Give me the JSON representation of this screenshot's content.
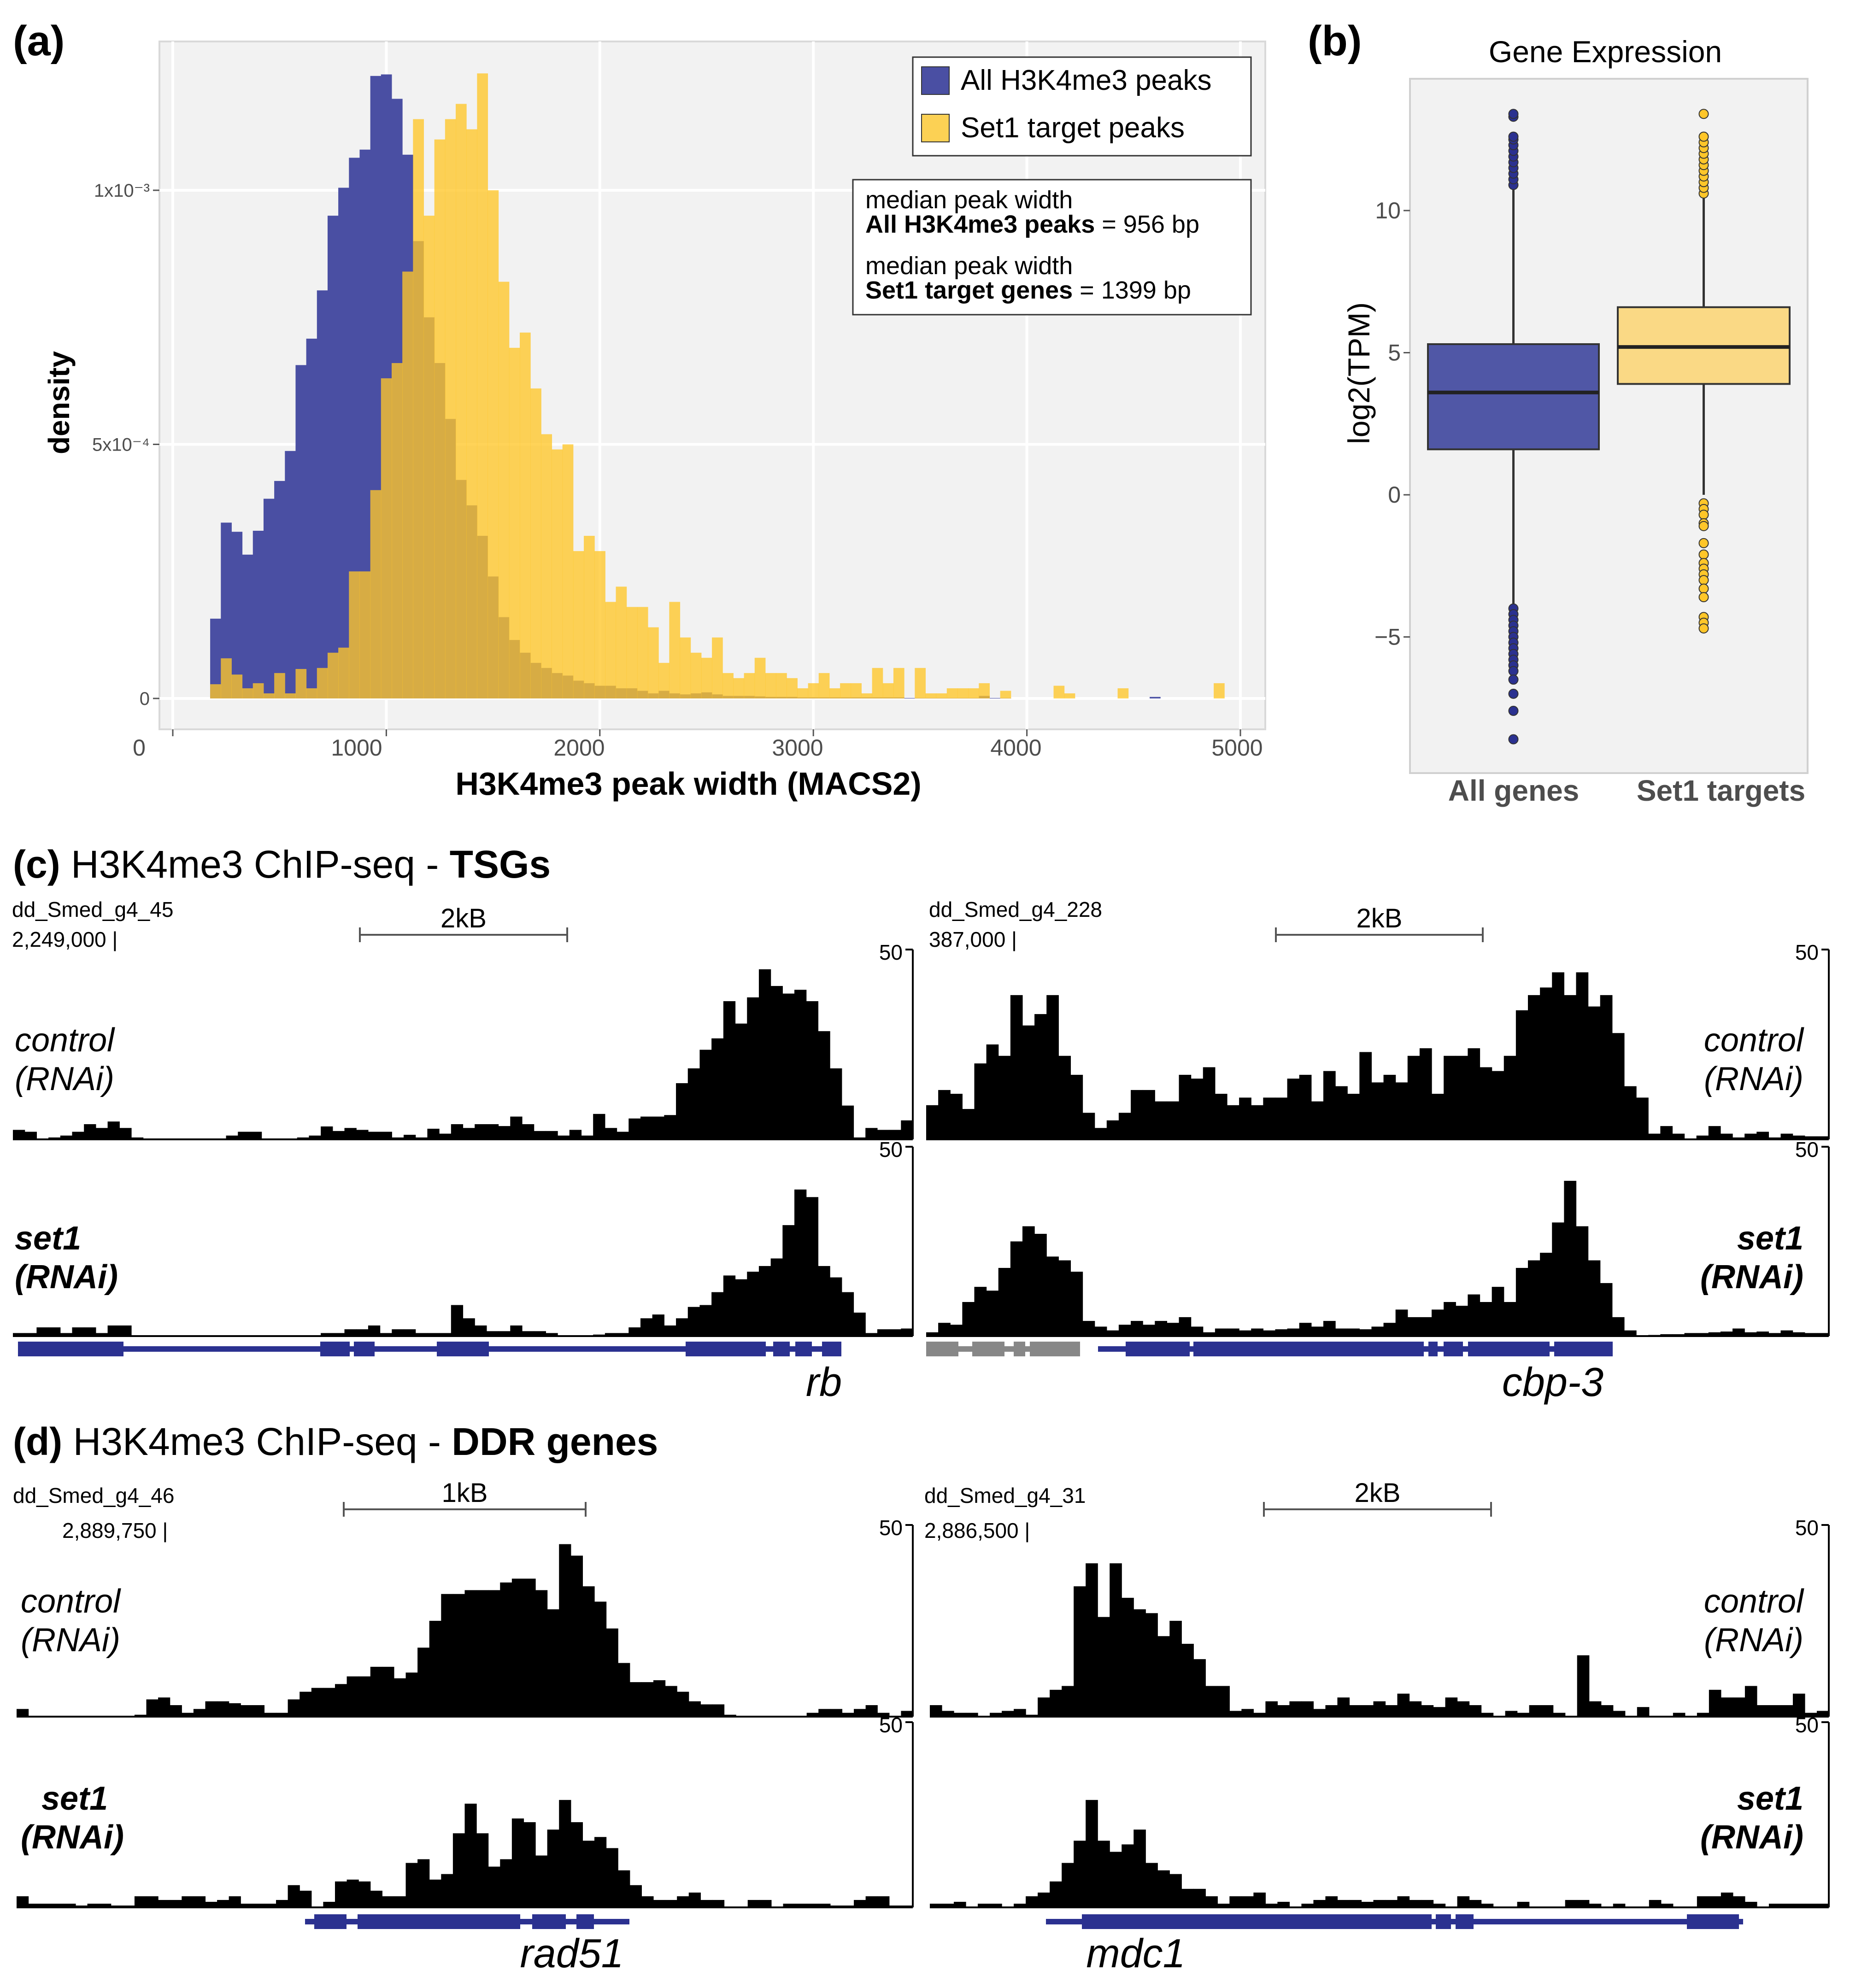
{
  "panel_a": {
    "label": "(a)",
    "chart_data": {
      "type": "histogram",
      "xlabel": "H3K4me3 peak width (MACS2)",
      "ylabel": "density",
      "xlim": [
        0,
        5000
      ],
      "ylim_x1e-4": [
        0,
        12.5
      ],
      "x_ticks": [
        "0",
        "1000",
        "2000",
        "3000",
        "4000",
        "5000"
      ],
      "y_ticks": [
        {
          "value_x1e-4": 0,
          "label": "0"
        },
        {
          "value_x1e-4": 5,
          "label": "5x10⁻⁴"
        },
        {
          "value_x1e-4": 10,
          "label": "1x10⁻³"
        }
      ],
      "grid": true,
      "legend_placement": "top-right",
      "bin_start_bp": 175,
      "bin_width_bp": 50,
      "value_unit": "density x 1e-4",
      "series": [
        {
          "name": "All H3K4me3 peaks",
          "color": "#4a4fa3",
          "values": [
            1.57,
            3.46,
            3.28,
            2.83,
            3.3,
            3.93,
            4.28,
            4.87,
            6.56,
            7.08,
            8.03,
            9.5,
            10.05,
            10.64,
            10.8,
            12.25,
            12.28,
            11.8,
            10.7,
            9.0,
            7.5,
            6.6,
            5.5,
            4.3,
            3.8,
            3.2,
            2.4,
            1.6,
            1.15,
            0.9,
            0.7,
            0.6,
            0.5,
            0.45,
            0.35,
            0.3,
            0.25,
            0.25,
            0.2,
            0.2,
            0.15,
            0.1,
            0.15,
            0.1,
            0.08,
            0.1,
            0.12,
            0.08,
            0.05,
            0.05,
            0.05,
            0.04,
            0.03,
            0.03,
            0.03,
            0.02,
            0.02,
            0.02,
            0.02,
            0.02,
            0.02,
            0.02,
            0.02,
            0.02,
            0.02,
            0.01,
            0.01,
            0.01,
            0.01,
            0.01,
            0.01,
            0.01,
            0.05,
            0.01,
            0.01,
            0,
            0,
            0,
            0,
            0,
            0,
            0,
            0,
            0,
            0,
            0,
            0,
            0,
            0.03,
            0,
            0,
            0,
            0,
            0,
            0
          ]
        },
        {
          "name": "Set1 target peaks",
          "color": "#ffc629",
          "values": [
            0.28,
            0.79,
            0.47,
            0.2,
            0.3,
            0.1,
            0.5,
            0.1,
            0.58,
            0.2,
            0.6,
            0.9,
            1.0,
            2.5,
            2.5,
            4.1,
            6.3,
            6.6,
            8.4,
            11.4,
            9.5,
            11.0,
            11.4,
            11.7,
            11.2,
            12.3,
            10.0,
            8.2,
            6.9,
            7.2,
            6.1,
            5.2,
            4.9,
            5.0,
            2.9,
            3.2,
            2.9,
            1.9,
            2.2,
            1.8,
            1.8,
            1.4,
            0.7,
            1.9,
            1.2,
            0.9,
            0.8,
            1.2,
            0.5,
            0.4,
            0.5,
            0.8,
            0.5,
            0.5,
            0.4,
            0.2,
            0.3,
            0.5,
            0.2,
            0.3,
            0.3,
            0.1,
            0.6,
            0.3,
            0.6,
            0,
            0.6,
            0.1,
            0.1,
            0.2,
            0.2,
            0.2,
            0.3,
            0,
            0.15,
            0,
            0,
            0,
            0,
            0.25,
            0.1,
            0,
            0,
            0,
            0,
            0.2,
            0,
            0,
            0,
            0,
            0,
            0,
            0,
            0,
            0.3
          ]
        }
      ],
      "annotations": [
        {
          "line1": "median peak width",
          "bold": "All H3K4me3 peaks",
          "rest": " = 956 bp"
        },
        {
          "line1": "median peak width",
          "bold": "Set1 target genes",
          "rest": " = 1399 bp"
        }
      ]
    }
  },
  "panel_b": {
    "label": "(b)",
    "chart_data": {
      "type": "box",
      "title": "Gene Expression",
      "ylabel": "log2(TPM)",
      "ylim": [
        -9.8,
        14.6
      ],
      "y_ticks": [
        {
          "value": 10,
          "label": "10"
        },
        {
          "value": 5,
          "label": "5"
        },
        {
          "value": 0,
          "label": "0"
        },
        {
          "value": -5,
          "label": "−5"
        }
      ],
      "categories": [
        "All genes",
        "Set1 targets"
      ],
      "series": [
        {
          "name": "All genes",
          "color": "#5057a6",
          "q1": 1.6,
          "median": 3.6,
          "q3": 5.3,
          "whisker_low": -4.0,
          "whisker_high": 10.9,
          "outliers": [
            10.9,
            11.1,
            11.3,
            11.5,
            11.7,
            11.9,
            12.1,
            12.3,
            12.5,
            12.6,
            13.3,
            13.4,
            -4.0,
            -4.2,
            -4.4,
            -4.6,
            -4.8,
            -5.0,
            -5.2,
            -5.4,
            -5.6,
            -5.8,
            -6.0,
            -6.2,
            -6.5,
            -7.0,
            -7.6,
            -8.6
          ]
        },
        {
          "name": "Set1 targets",
          "color": "#fad985",
          "q1": 3.9,
          "median": 5.2,
          "q3": 6.6,
          "whisker_low": 0.0,
          "whisker_high": 10.6,
          "outliers": [
            10.6,
            10.8,
            11.0,
            11.2,
            11.4,
            11.6,
            11.8,
            12.0,
            12.2,
            12.4,
            12.6,
            13.4,
            -0.3,
            -0.5,
            -0.7,
            -1.0,
            -1.1,
            -1.7,
            -2.1,
            -2.4,
            -2.6,
            -2.8,
            -3.0,
            -3.3,
            -3.6,
            -4.3,
            -4.5,
            -4.7
          ]
        }
      ],
      "outlier_colors": [
        "#2b3190",
        "#ffc629"
      ]
    }
  },
  "panel_c": {
    "label": "(c)",
    "title": " H3K4me3 ChIP-seq - ",
    "title_bold": "TSGs",
    "loci": [
      {
        "contig": "dd_Smed_g4_45",
        "position": "2,249,000 |",
        "scale": "2kB",
        "ymax": "50",
        "gene": "rb",
        "control": [
          2.5,
          2,
          0,
          0.5,
          1,
          2,
          4,
          3,
          4.7,
          3,
          0.5,
          0,
          0,
          0,
          0,
          0,
          0,
          0,
          1,
          2,
          2,
          0,
          0,
          0,
          0.5,
          1,
          3.4,
          2.2,
          3,
          2.5,
          2,
          2,
          0.5,
          1.2,
          0.5,
          2.8,
          1.5,
          4,
          3,
          4,
          4,
          3.5,
          6,
          4,
          2.2,
          2.2,
          1,
          2.5,
          1,
          6.7,
          3,
          2,
          5.5,
          6,
          6,
          6.4,
          14.8,
          18.7,
          23.6,
          26.6,
          36.4,
          30.5,
          37.4,
          44.8,
          40.4,
          38.4,
          39.4,
          36.4,
          28.5,
          18.7,
          8.9,
          0.5,
          3,
          2.5,
          2.5,
          5
        ],
        "set1": [
          0.8,
          0.8,
          2.3,
          2.3,
          0.8,
          2.3,
          2.3,
          0.8,
          2.8,
          2.8,
          0,
          0,
          0,
          0,
          0,
          0,
          0,
          0,
          0,
          0,
          0,
          0,
          0,
          0,
          0,
          0,
          0.8,
          0.8,
          1.8,
          1.8,
          2.8,
          0.8,
          1.8,
          1.8,
          0.8,
          0.8,
          0.8,
          8.2,
          4.7,
          2.8,
          1.3,
          1.3,
          2.8,
          1.3,
          1.3,
          0.8,
          0,
          0,
          0,
          0.4,
          0.8,
          0.8,
          2.3,
          4.7,
          5.7,
          2.8,
          4.7,
          7.7,
          8.2,
          11.6,
          16,
          15,
          17,
          18.5,
          20.5,
          29.3,
          38.7,
          36.7,
          18.5,
          15.5,
          11.6,
          6.2,
          0.8,
          1.8,
          1.8,
          2
        ]
      },
      {
        "contig": "dd_Smed_g4_228",
        "position": "387,000 |",
        "scale": "2kB",
        "ymax": "50",
        "gene": "cbp-3",
        "control": [
          9,
          13,
          12,
          8,
          20,
          25,
          22,
          38,
          30,
          33,
          38,
          22,
          17,
          7,
          3,
          5,
          7,
          13,
          13,
          10,
          10,
          17,
          16,
          19,
          12,
          9,
          11,
          9,
          11,
          11,
          16,
          17,
          10,
          18,
          14,
          12,
          23,
          15,
          17,
          15,
          22,
          24,
          12,
          22,
          22,
          24,
          19,
          18,
          22,
          34,
          38,
          40,
          44,
          38,
          44,
          35,
          38,
          28,
          14,
          11,
          1.5,
          3.5,
          1.5,
          0,
          1,
          3.5,
          1.5,
          0.5,
          1.5,
          2,
          0.5,
          1.5,
          1,
          0.8,
          0.8
        ],
        "set1": [
          1,
          3.5,
          3,
          9,
          13,
          12,
          18,
          25,
          29,
          27,
          21,
          20,
          17,
          4,
          2.5,
          1.5,
          3,
          4,
          3,
          4,
          3.5,
          5,
          2.5,
          1,
          2,
          2,
          1.5,
          2,
          1.5,
          1.8,
          2,
          3.5,
          2.5,
          4,
          2,
          2,
          1.8,
          2.5,
          3.5,
          7,
          5,
          5,
          7,
          9,
          8,
          11,
          9,
          13,
          9,
          18,
          20,
          22,
          30,
          41,
          29,
          20,
          14,
          5,
          1.5,
          0,
          0.3,
          0.5,
          0.5,
          0.8,
          0.8,
          1,
          1.2,
          2,
          1,
          1.2,
          0.8,
          1.5,
          1,
          0.8,
          0.8
        ]
      }
    ]
  },
  "panel_d": {
    "label": "(d)",
    "title": " H3K4me3 ChIP-seq - ",
    "title_bold": "DDR genes",
    "loci": [
      {
        "contig": "dd_Smed_g4_46",
        "position": "2,889,750 |",
        "scale": "1kB",
        "ymax": "50",
        "gene": "rad51",
        "control": [
          2,
          0,
          0,
          0,
          0,
          0,
          0,
          0,
          0,
          0,
          0.5,
          4.5,
          5,
          3,
          1,
          2,
          4,
          4,
          3.5,
          3,
          3,
          1,
          1,
          4.5,
          6.5,
          7.5,
          7.5,
          8.5,
          10.5,
          10.5,
          13,
          13,
          10,
          11.5,
          18,
          25,
          32,
          32,
          33,
          33,
          33,
          35,
          36,
          36,
          33,
          28,
          45,
          42,
          34,
          30,
          23,
          14,
          9,
          9,
          9.5,
          8,
          6.5,
          4,
          3.2,
          3.2,
          0.5,
          0,
          0,
          0,
          0,
          0,
          0,
          1,
          2,
          2,
          1,
          2,
          3,
          1,
          0,
          1.5
        ],
        "set1": [
          3,
          1,
          1,
          1,
          1,
          0.5,
          1,
          1,
          0.5,
          0.5,
          3,
          3,
          2,
          2,
          3,
          3,
          1.5,
          2,
          3,
          1,
          1,
          1,
          2,
          6,
          4.5,
          0,
          1.5,
          7,
          7.5,
          7,
          4.5,
          3,
          3,
          12,
          13,
          7.5,
          9,
          20,
          28,
          20,
          11,
          13,
          24,
          23,
          14,
          21,
          29,
          23,
          18,
          19,
          16,
          10,
          6,
          3,
          2,
          2,
          3,
          4,
          2,
          2,
          0,
          0,
          2,
          2,
          0,
          1,
          1,
          1,
          1,
          0.5,
          0.5,
          2,
          3,
          3,
          0.5,
          0.5
        ]
      },
      {
        "contig": "dd_Smed_g4_31",
        "position": "2,886,500 |",
        "scale": "2kB",
        "ymax": "50",
        "gene": "mdc1",
        "control": [
          3,
          1.5,
          1,
          1,
          0,
          1,
          1.5,
          2,
          0.5,
          5,
          7,
          8,
          34,
          40,
          26,
          40,
          31,
          28,
          27,
          21,
          25,
          19,
          15,
          8,
          8,
          1.5,
          2,
          1,
          4,
          3,
          4,
          4,
          2,
          3,
          5,
          3,
          3,
          4,
          3,
          6,
          4,
          3,
          2.5,
          5,
          4,
          3,
          1,
          0,
          1.5,
          1,
          3,
          3,
          1,
          0,
          16,
          4,
          3,
          1.5,
          0,
          2.5,
          0,
          0,
          1,
          0,
          1,
          7,
          5,
          5,
          8,
          3,
          3,
          3,
          6,
          1,
          1.5
        ],
        "set1": [
          1,
          1,
          1.5,
          0,
          1,
          1,
          0,
          1,
          3,
          4,
          7,
          12,
          18,
          29,
          18,
          15,
          17,
          21,
          12,
          10,
          9,
          5,
          5,
          3,
          1,
          3,
          3,
          4,
          1,
          1.5,
          0,
          1,
          2,
          3,
          2,
          2,
          1.5,
          2,
          2,
          3,
          2,
          2,
          1,
          0,
          3,
          2,
          1,
          0,
          0,
          1.5,
          0,
          0,
          0,
          2,
          2,
          1,
          0,
          1,
          0,
          0,
          2,
          1,
          0,
          0,
          3,
          3,
          4,
          3,
          1.5,
          0,
          1,
          1,
          1,
          1,
          1
        ]
      }
    ]
  },
  "track_labels": {
    "control": "control",
    "control_sub": "(RNAi)",
    "set1": "set1",
    "set1_sub": "(RNAi)"
  },
  "colors": {
    "gene_model": "#2b3190",
    "gene_model_other": "#878787",
    "coverage": "#000000"
  }
}
